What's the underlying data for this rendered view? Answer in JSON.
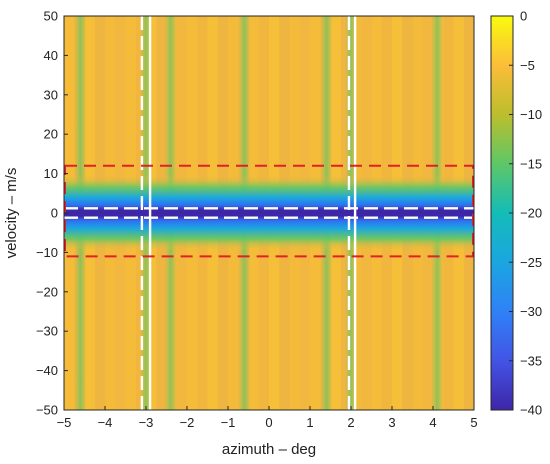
{
  "chart_data": {
    "type": "heatmap",
    "title": "",
    "xlabel": "azimuth – deg",
    "ylabel": "velocity – m/s",
    "xlim": [
      -5,
      5
    ],
    "ylim": [
      -50,
      50
    ],
    "x_ticks": [
      -5,
      -4,
      -3,
      -2,
      -1,
      0,
      1,
      2,
      3,
      4,
      5
    ],
    "y_ticks": [
      -50,
      -40,
      -30,
      -20,
      -10,
      0,
      10,
      20,
      30,
      40,
      50
    ],
    "x_tick_labels": [
      "−5",
      "−4",
      "−3",
      "−2",
      "−1",
      "0",
      "1",
      "2",
      "3",
      "4",
      "5"
    ],
    "y_tick_labels": [
      "−50",
      "−40",
      "−30",
      "−20",
      "−10",
      "0",
      "10",
      "20",
      "30",
      "40",
      "50"
    ],
    "colorbar": {
      "range": [
        -40,
        0
      ],
      "ticks": [
        0,
        -5,
        -10,
        -15,
        -20,
        -25,
        -30,
        -35,
        -40
      ],
      "tick_labels": [
        "0",
        "−5",
        "−10",
        "−15",
        "−20",
        "−25",
        "−30",
        "−35",
        "−40"
      ],
      "colormap": "parula"
    },
    "background_level": -7,
    "clutter_band": {
      "velocity_center": 0,
      "core_level": -40,
      "halfwidth_velocity": 6
    },
    "target_ridges_azimuth": [
      -4.6,
      -3.0,
      -2.4,
      -0.6,
      1.4,
      2.0,
      4.1
    ],
    "annotations": {
      "white_dashed_vertical_azimuth": [
        -3.1,
        1.95
      ],
      "white_solid_vertical_azimuth": [
        -2.9,
        2.1
      ],
      "white_dashed_horizontal_velocity": [
        1.2,
        -1.2
      ],
      "red_dashed_box": {
        "azimuth": [
          -5,
          5
        ],
        "velocity": [
          -11,
          12
        ]
      }
    },
    "grid": false
  }
}
